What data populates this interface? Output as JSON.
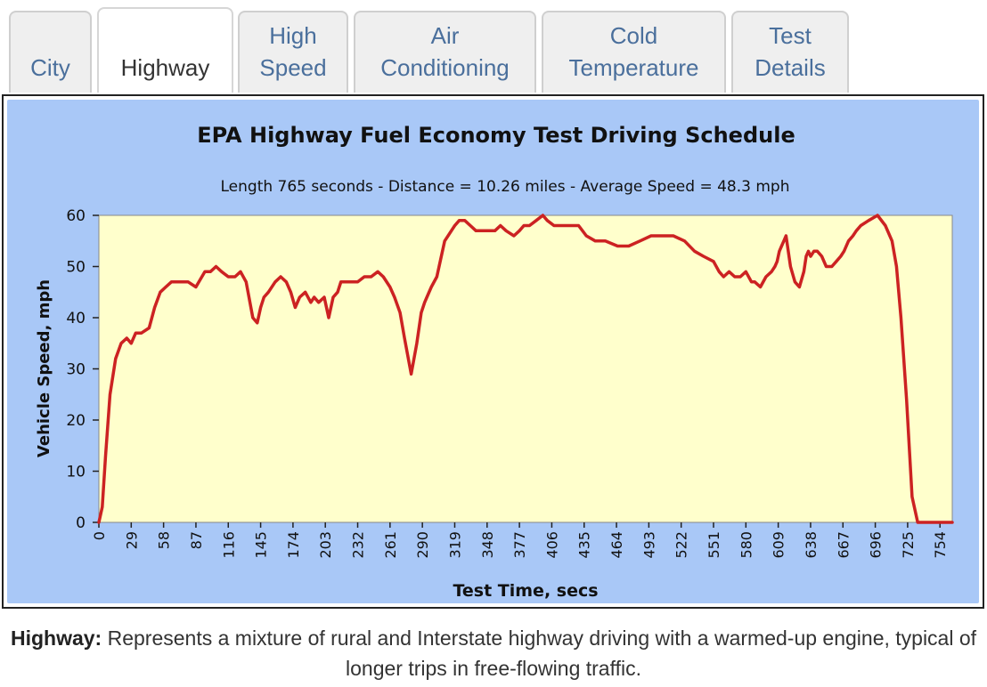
{
  "tabs": [
    {
      "line1": "",
      "line2": "City",
      "active": false
    },
    {
      "line1": "",
      "line2": "Highway",
      "active": true
    },
    {
      "line1": "High",
      "line2": "Speed",
      "active": false
    },
    {
      "line1": "Air",
      "line2": "Conditioning",
      "active": false
    },
    {
      "line1": "Cold",
      "line2": "Temperature",
      "active": false
    },
    {
      "line1": "Test",
      "line2": "Details",
      "active": false
    }
  ],
  "colors": {
    "outer_bg": "#a9c8f7",
    "plot_bg": "#ffffcc",
    "line": "#cc2222"
  },
  "caption": {
    "label": "Highway:",
    "text": " Represents a mixture of rural and Interstate highway driving with a warmed-up engine, typical of longer trips in free-flowing traffic."
  },
  "chart_data": {
    "type": "line",
    "title": "EPA Highway Fuel Economy Test Driving Schedule",
    "subtitle": "Length 765 seconds - Distance = 10.26 miles - Average Speed = 48.3 mph",
    "xlabel": "Test Time, secs",
    "ylabel": "Vehicle Speed, mph",
    "xlim": [
      0,
      765
    ],
    "ylim": [
      0,
      60
    ],
    "yticks": [
      "0",
      "10",
      "20",
      "30",
      "40",
      "50",
      "60"
    ],
    "xticks": [
      "0",
      "29",
      "58",
      "87",
      "116",
      "145",
      "174",
      "203",
      "232",
      "261",
      "290",
      "319",
      "348",
      "377",
      "406",
      "435",
      "464",
      "493",
      "522",
      "551",
      "580",
      "609",
      "638",
      "667",
      "696",
      "725",
      "754"
    ],
    "series": [
      {
        "name": "Vehicle Speed",
        "x": [
          0,
          3,
          6,
          10,
          15,
          20,
          25,
          29,
          33,
          38,
          45,
          50,
          55,
          60,
          65,
          70,
          75,
          80,
          87,
          95,
          100,
          105,
          110,
          116,
          122,
          127,
          132,
          138,
          142,
          145,
          148,
          152,
          158,
          163,
          168,
          172,
          176,
          180,
          185,
          190,
          193,
          197,
          202,
          206,
          210,
          214,
          217,
          222,
          226,
          232,
          238,
          244,
          250,
          255,
          261,
          265,
          270,
          274,
          280,
          285,
          289,
          292,
          294,
          298,
          303,
          310,
          319,
          323,
          328,
          333,
          338,
          344,
          348,
          355,
          360,
          365,
          372,
          377,
          381,
          386,
          392,
          398,
          402,
          408,
          414,
          420,
          425,
          430,
          437,
          445,
          454,
          465,
          475,
          485,
          495,
          505,
          515,
          525,
          534,
          542,
          551,
          556,
          560,
          565,
          570,
          575,
          580,
          585,
          588,
          593,
          598,
          603,
          606,
          608,
          610,
          612,
          614,
          616,
          620,
          624,
          628,
          632,
          634,
          636,
          638,
          641,
          644,
          648,
          652,
          657,
          661,
          665,
          668,
          672,
          676,
          679,
          683,
          690,
          698,
          705,
          711,
          715,
          719,
          724,
          729,
          734,
          739,
          744,
          748,
          752,
          756,
          760,
          765
        ],
        "y": [
          0,
          3,
          13,
          25,
          32,
          35,
          36,
          35,
          37,
          37,
          38,
          42,
          45,
          46,
          47,
          47,
          47,
          47,
          46,
          49,
          49,
          50,
          49,
          48,
          48,
          49,
          47,
          40,
          39,
          42,
          44,
          45,
          47,
          48,
          47,
          45,
          42,
          44,
          45,
          43,
          44,
          43,
          44,
          40,
          44,
          45,
          47,
          47,
          47,
          47,
          48,
          48,
          49,
          48,
          46,
          44,
          41,
          36,
          29,
          35,
          41,
          43,
          44,
          46,
          48,
          55,
          58,
          59,
          59,
          58,
          57,
          57,
          57,
          57,
          58,
          57,
          56,
          57,
          58,
          58,
          59,
          60,
          59,
          58,
          58,
          58,
          58,
          58,
          56,
          55,
          55,
          54,
          54,
          55,
          56,
          56,
          56,
          55,
          53,
          52,
          51,
          49,
          48,
          49,
          48,
          48,
          49,
          47,
          47,
          46,
          48,
          49,
          50,
          51,
          53,
          54,
          55,
          56,
          50,
          47,
          46,
          49,
          52,
          53,
          52,
          53,
          53,
          52,
          50,
          50,
          51,
          52,
          53,
          55,
          56,
          57,
          58,
          59,
          60,
          58,
          55,
          50,
          40,
          24,
          5,
          0,
          0,
          0,
          0,
          0,
          0,
          0,
          0
        ]
      }
    ]
  }
}
